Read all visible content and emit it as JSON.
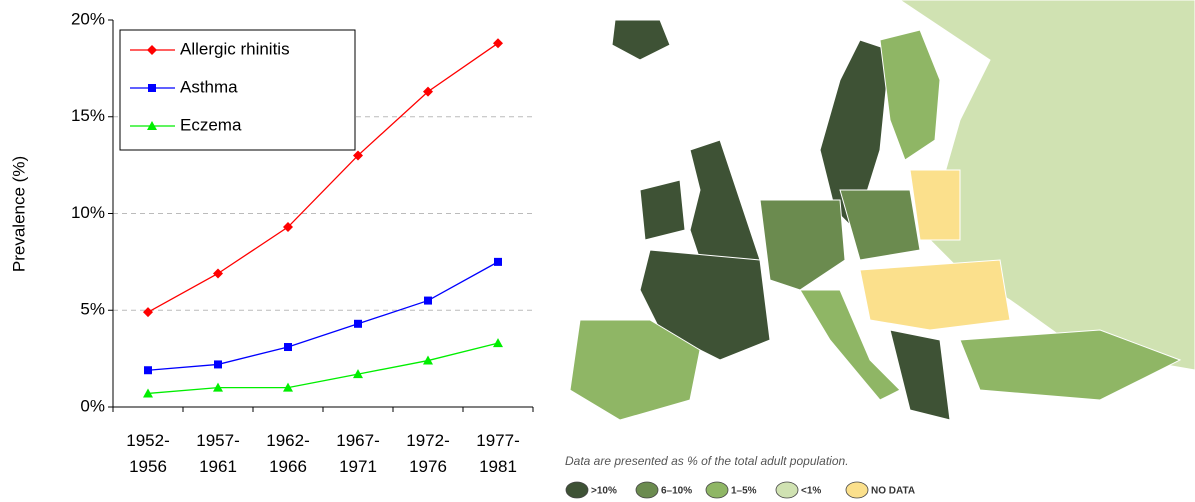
{
  "chart_data": {
    "type": "line",
    "y_label": "Prevalence (%)",
    "categories": [
      "1952-1956",
      "1957-1961",
      "1962-1966",
      "1967-1971",
      "1972-1976",
      "1977-1981"
    ],
    "series": [
      {
        "name": "Allergic rhinitis",
        "color": "#ff0000",
        "marker": "diamond",
        "values": [
          4.9,
          6.9,
          9.3,
          13.0,
          16.3,
          18.8
        ]
      },
      {
        "name": "Asthma",
        "color": "#0000ff",
        "marker": "square",
        "values": [
          1.9,
          2.2,
          3.1,
          4.3,
          5.5,
          7.5
        ]
      },
      {
        "name": "Eczema",
        "color": "#00ee00",
        "marker": "triangle",
        "values": [
          0.7,
          1.0,
          1.0,
          1.7,
          2.4,
          3.3
        ]
      }
    ],
    "ylim": [
      0,
      20
    ],
    "yticks": [
      {
        "value": 0,
        "label": "0%"
      },
      {
        "value": 5,
        "label": "5%"
      },
      {
        "value": 10,
        "label": "10%"
      },
      {
        "value": 15,
        "label": "15%"
      },
      {
        "value": 20,
        "label": "20%"
      }
    ],
    "grid": true,
    "legend": "top-left"
  },
  "map": {
    "caption": "Data are presented as % of the total adult population.",
    "legend": [
      {
        "label": ">10%",
        "color": "#3e5235"
      },
      {
        "label": "6–10%",
        "color": "#6b8b4f"
      },
      {
        "label": "1–5%",
        "color": "#8fb665"
      },
      {
        "label": "<1%",
        "color": "#d0e2b2"
      },
      {
        "label": "NO DATA",
        "color": "#fbe08c"
      }
    ]
  }
}
